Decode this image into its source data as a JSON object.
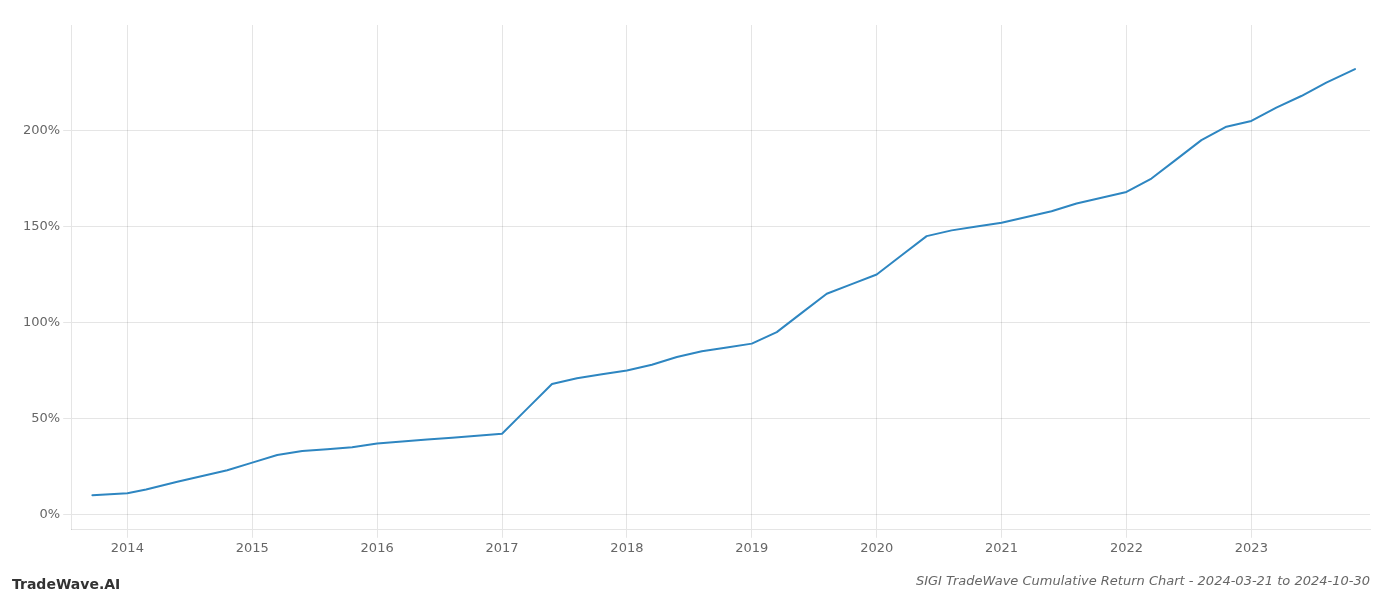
{
  "chart_data": {
    "type": "line",
    "title": "SIGI TradeWave Cumulative Return Chart - 2024-03-21 to 2024-10-30",
    "annotations": [
      "TradeWave.AI"
    ],
    "x": [
      2013.72,
      2014.0,
      2014.15,
      2014.4,
      2014.6,
      2014.8,
      2015.0,
      2015.2,
      2015.4,
      2015.6,
      2015.8,
      2016.0,
      2016.2,
      2016.4,
      2016.6,
      2016.8,
      2017.0,
      2017.2,
      2017.4,
      2017.6,
      2017.8,
      2018.0,
      2018.2,
      2018.4,
      2018.6,
      2018.8,
      2019.0,
      2019.2,
      2019.4,
      2019.6,
      2019.8,
      2020.0,
      2020.2,
      2020.4,
      2020.6,
      2020.8,
      2021.0,
      2021.2,
      2021.4,
      2021.6,
      2021.8,
      2022.0,
      2022.2,
      2022.4,
      2022.6,
      2022.8,
      2023.0,
      2023.2,
      2023.4,
      2023.6,
      2023.83
    ],
    "values": [
      10,
      11,
      13,
      17,
      20,
      23,
      27,
      31,
      33,
      34,
      35,
      37,
      38,
      39,
      40,
      41,
      42,
      55,
      68,
      71,
      73,
      75,
      78,
      82,
      85,
      87,
      89,
      95,
      105,
      115,
      120,
      125,
      135,
      145,
      148,
      150,
      152,
      155,
      158,
      162,
      165,
      168,
      175,
      185,
      195,
      202,
      205,
      212,
      218,
      225,
      232
    ],
    "color": "#2e86c1",
    "xlim": [
      2013.55,
      2023.95
    ],
    "ylim": [
      -8,
      255
    ],
    "xticks": [
      2014,
      2015,
      2016,
      2017,
      2018,
      2019,
      2020,
      2021,
      2022,
      2023
    ],
    "yticks": [
      {
        "value": 0,
        "label": "0%"
      },
      {
        "value": 50,
        "label": "50%"
      },
      {
        "value": 100,
        "label": "100%"
      },
      {
        "value": 150,
        "label": "150%"
      },
      {
        "value": 200,
        "label": "200%"
      }
    ],
    "grid": true
  }
}
